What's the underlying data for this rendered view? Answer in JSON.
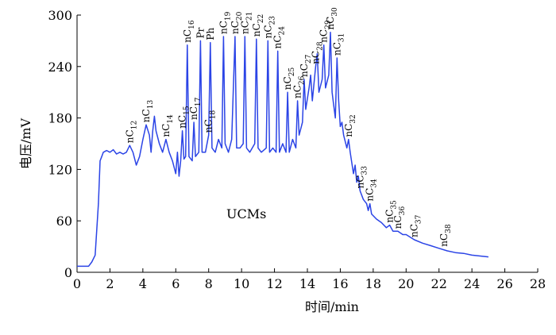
{
  "chart_data": {
    "type": "line",
    "x_label": "时间/min",
    "y_label": "电压/mV",
    "xlim": [
      0,
      28
    ],
    "ylim": [
      0,
      300
    ],
    "xticks": [
      0,
      2,
      4,
      6,
      8,
      10,
      12,
      14,
      16,
      18,
      20,
      22,
      24,
      26,
      28
    ],
    "yticks": [
      0,
      60,
      120,
      180,
      240,
      300
    ],
    "x": [
      0,
      0.7,
      0.9,
      1.1,
      1.3,
      1.4,
      1.5,
      1.6,
      1.8,
      2.0,
      2.2,
      2.4,
      2.6,
      2.8,
      3.0,
      3.2,
      3.4,
      3.6,
      3.8,
      4.0,
      4.2,
      4.4,
      4.5,
      4.6,
      4.7,
      4.8,
      5.0,
      5.2,
      5.4,
      5.6,
      5.8,
      6.0,
      6.1,
      6.2,
      6.3,
      6.4,
      6.5,
      6.6,
      6.7,
      6.8,
      7.0,
      7.1,
      7.2,
      7.4,
      7.5,
      7.6,
      7.8,
      8.0,
      8.1,
      8.2,
      8.4,
      8.6,
      8.8,
      8.9,
      9.0,
      9.2,
      9.4,
      9.6,
      9.7,
      9.9,
      10.1,
      10.2,
      10.3,
      10.5,
      10.8,
      10.9,
      11.0,
      11.2,
      11.5,
      11.6,
      11.7,
      11.9,
      12.1,
      12.2,
      12.3,
      12.5,
      12.7,
      12.8,
      12.9,
      13.1,
      13.3,
      13.4,
      13.5,
      13.7,
      13.8,
      13.9,
      14.1,
      14.2,
      14.3,
      14.5,
      14.6,
      14.7,
      14.9,
      15.0,
      15.1,
      15.3,
      15.4,
      15.5,
      15.6,
      15.7,
      15.8,
      15.9,
      16.0,
      16.1,
      16.2,
      16.4,
      16.5,
      16.6,
      16.8,
      16.9,
      17.0,
      17.1,
      17.2,
      17.4,
      17.6,
      17.7,
      17.8,
      17.9,
      18.2,
      18.5,
      18.8,
      19.0,
      19.2,
      19.5,
      19.8,
      20.0,
      20.5,
      21.0,
      21.5,
      22.0,
      22.5,
      23.0,
      23.5,
      24.0,
      24.5,
      25.0
    ],
    "series": [
      {
        "color": "#2b44e6",
        "values": [
          7,
          7,
          12,
          20,
          80,
          130,
          135,
          140,
          142,
          140,
          143,
          138,
          140,
          138,
          140,
          148,
          140,
          125,
          135,
          155,
          172,
          160,
          140,
          165,
          182,
          165,
          150,
          140,
          155,
          140,
          130,
          115,
          140,
          112,
          130,
          165,
          132,
          135,
          265,
          135,
          130,
          175,
          135,
          140,
          270,
          140,
          140,
          160,
          268,
          145,
          140,
          155,
          145,
          275,
          150,
          140,
          155,
          275,
          145,
          145,
          150,
          275,
          145,
          140,
          150,
          272,
          145,
          140,
          145,
          270,
          140,
          145,
          140,
          258,
          140,
          150,
          140,
          210,
          140,
          155,
          145,
          200,
          160,
          175,
          225,
          190,
          215,
          230,
          200,
          240,
          255,
          210,
          225,
          265,
          215,
          230,
          280,
          210,
          195,
          180,
          250,
          200,
          170,
          175,
          160,
          145,
          155,
          140,
          115,
          125,
          105,
          112,
          95,
          85,
          80,
          72,
          80,
          68,
          62,
          58,
          52,
          55,
          48,
          48,
          44,
          44,
          38,
          34,
          31,
          28,
          25,
          23,
          22,
          20,
          19,
          18
        ]
      }
    ],
    "annotations": [
      {
        "text": "nC",
        "sub": "12",
        "x": 3.2,
        "y": 148
      },
      {
        "text": "nC",
        "sub": "13",
        "x": 4.2,
        "y": 172
      },
      {
        "text": "nC",
        "sub": "14",
        "x": 5.4,
        "y": 155
      },
      {
        "text": "nC",
        "sub": "15",
        "x": 6.4,
        "y": 165
      },
      {
        "text": "nC",
        "sub": "16",
        "x": 6.7,
        "y": 265
      },
      {
        "text": "nC",
        "sub": "17",
        "x": 7.1,
        "y": 175
      },
      {
        "text": "Pr",
        "x": 7.5,
        "y": 270
      },
      {
        "text": "nC",
        "sub": "18",
        "x": 8.0,
        "y": 160
      },
      {
        "text": "Ph",
        "x": 8.1,
        "y": 268
      },
      {
        "text": "nC",
        "sub": "19",
        "x": 8.9,
        "y": 275
      },
      {
        "text": "nC",
        "sub": "20",
        "x": 9.6,
        "y": 275
      },
      {
        "text": "nC",
        "sub": "21",
        "x": 10.2,
        "y": 275
      },
      {
        "text": "nC",
        "sub": "22",
        "x": 10.9,
        "y": 272
      },
      {
        "text": "nC",
        "sub": "23",
        "x": 11.6,
        "y": 270
      },
      {
        "text": "nC",
        "sub": "24",
        "x": 12.2,
        "y": 258
      },
      {
        "text": "nC",
        "sub": "25",
        "x": 12.8,
        "y": 210
      },
      {
        "text": "nC",
        "sub": "26",
        "x": 13.4,
        "y": 200
      },
      {
        "text": "nC",
        "sub": "27",
        "x": 13.8,
        "y": 225
      },
      {
        "text": "nC",
        "sub": "28",
        "x": 14.5,
        "y": 240
      },
      {
        "text": "nC",
        "sub": "29",
        "x": 15.0,
        "y": 265
      },
      {
        "text": "nC",
        "sub": "30",
        "x": 15.4,
        "y": 280
      },
      {
        "text": "nC",
        "sub": "31",
        "x": 15.8,
        "y": 250
      },
      {
        "text": "nC",
        "sub": "32",
        "x": 16.5,
        "y": 155
      },
      {
        "text": "nC",
        "sub": "33",
        "x": 17.2,
        "y": 95
      },
      {
        "text": "nC",
        "sub": "34",
        "x": 17.8,
        "y": 80
      },
      {
        "text": "nC",
        "sub": "35",
        "x": 19.0,
        "y": 55
      },
      {
        "text": "nC",
        "sub": "36",
        "x": 19.5,
        "y": 48
      },
      {
        "text": "nC",
        "sub": "37",
        "x": 20.5,
        "y": 38
      },
      {
        "text": "nC",
        "sub": "38",
        "x": 22.3,
        "y": 27
      }
    ],
    "note": "UCMs"
  }
}
